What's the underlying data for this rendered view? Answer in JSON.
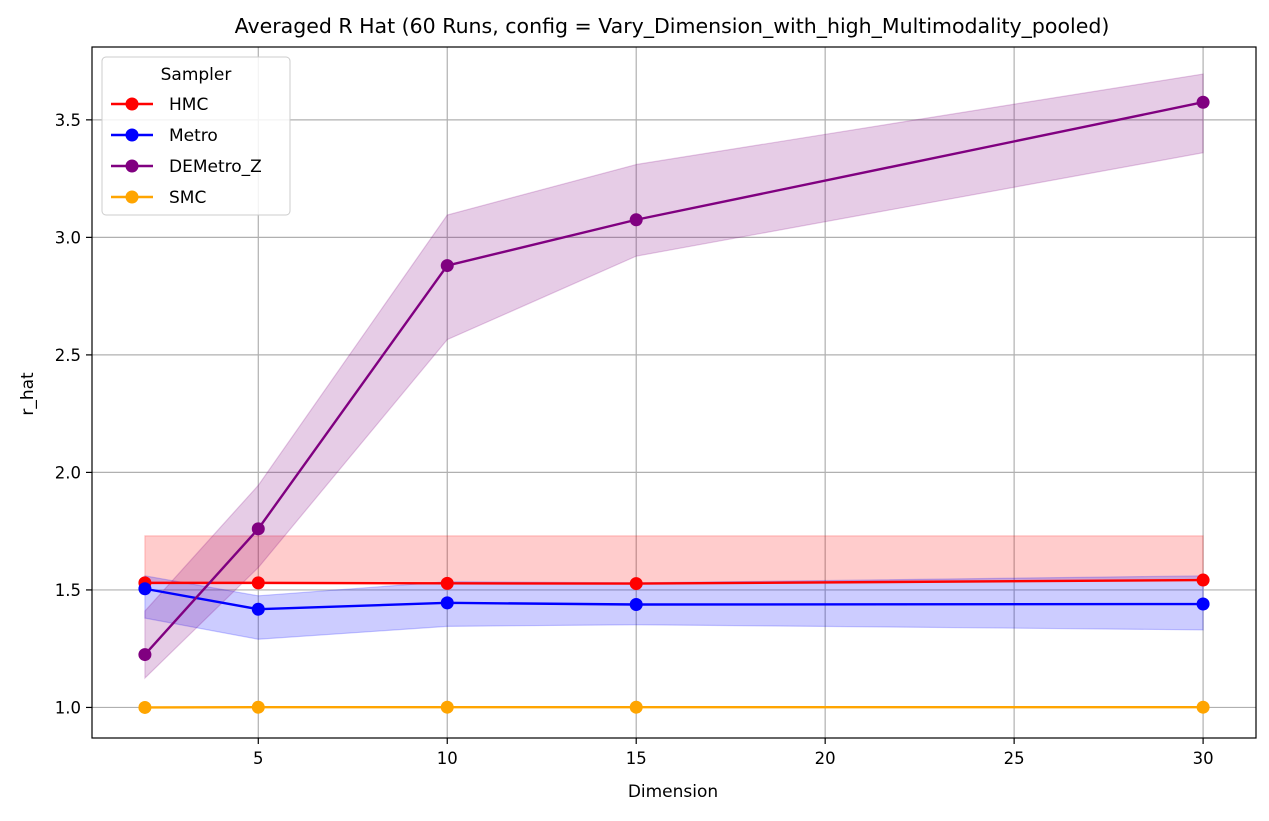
{
  "chart_data": {
    "type": "line",
    "title": "Averaged R Hat (60 Runs, config = Vary_Dimension_with_high_Multimodality_pooled)",
    "xlabel": "Dimension",
    "ylabel": "r_hat",
    "xlim": [
      0.6,
      31.4
    ],
    "ylim": [
      0.87,
      3.81
    ],
    "x": [
      2,
      5,
      10,
      15,
      30
    ],
    "x_ticks": [
      5,
      10,
      15,
      20,
      25,
      30
    ],
    "y_ticks": [
      1.0,
      1.5,
      2.0,
      2.5,
      3.0,
      3.5
    ],
    "grid": true,
    "legend": {
      "title": "Sampler",
      "position": "top-left"
    },
    "series": [
      {
        "name": "HMC",
        "color": "#ff0000",
        "band_color": "#ff0000",
        "values": [
          1.53,
          1.53,
          1.528,
          1.527,
          1.542
        ],
        "lower": [
          1.53,
          1.53,
          1.528,
          1.527,
          1.542
        ],
        "upper": [
          1.73,
          1.73,
          1.73,
          1.73,
          1.73
        ]
      },
      {
        "name": "Metro",
        "color": "#0000ff",
        "band_color": "#0000ff",
        "values": [
          1.505,
          1.418,
          1.445,
          1.438,
          1.44
        ],
        "lower": [
          1.38,
          1.29,
          1.345,
          1.352,
          1.33
        ],
        "upper": [
          1.56,
          1.475,
          1.535,
          1.53,
          1.56
        ]
      },
      {
        "name": "DEMetro_Z",
        "color": "#800080",
        "band_color": "#800080",
        "values": [
          1.225,
          1.76,
          2.88,
          3.075,
          3.575
        ],
        "lower": [
          1.125,
          1.595,
          2.565,
          2.92,
          3.36
        ],
        "upper": [
          1.41,
          1.945,
          3.095,
          3.31,
          3.695
        ]
      },
      {
        "name": "SMC",
        "color": "#ffa500",
        "band_color": "#ffa500",
        "values": [
          1.0,
          1.001,
          1.001,
          1.001,
          1.001
        ],
        "lower": [
          1.0,
          1.001,
          1.001,
          1.001,
          1.001
        ],
        "upper": [
          1.0,
          1.001,
          1.001,
          1.001,
          1.001
        ]
      }
    ]
  }
}
